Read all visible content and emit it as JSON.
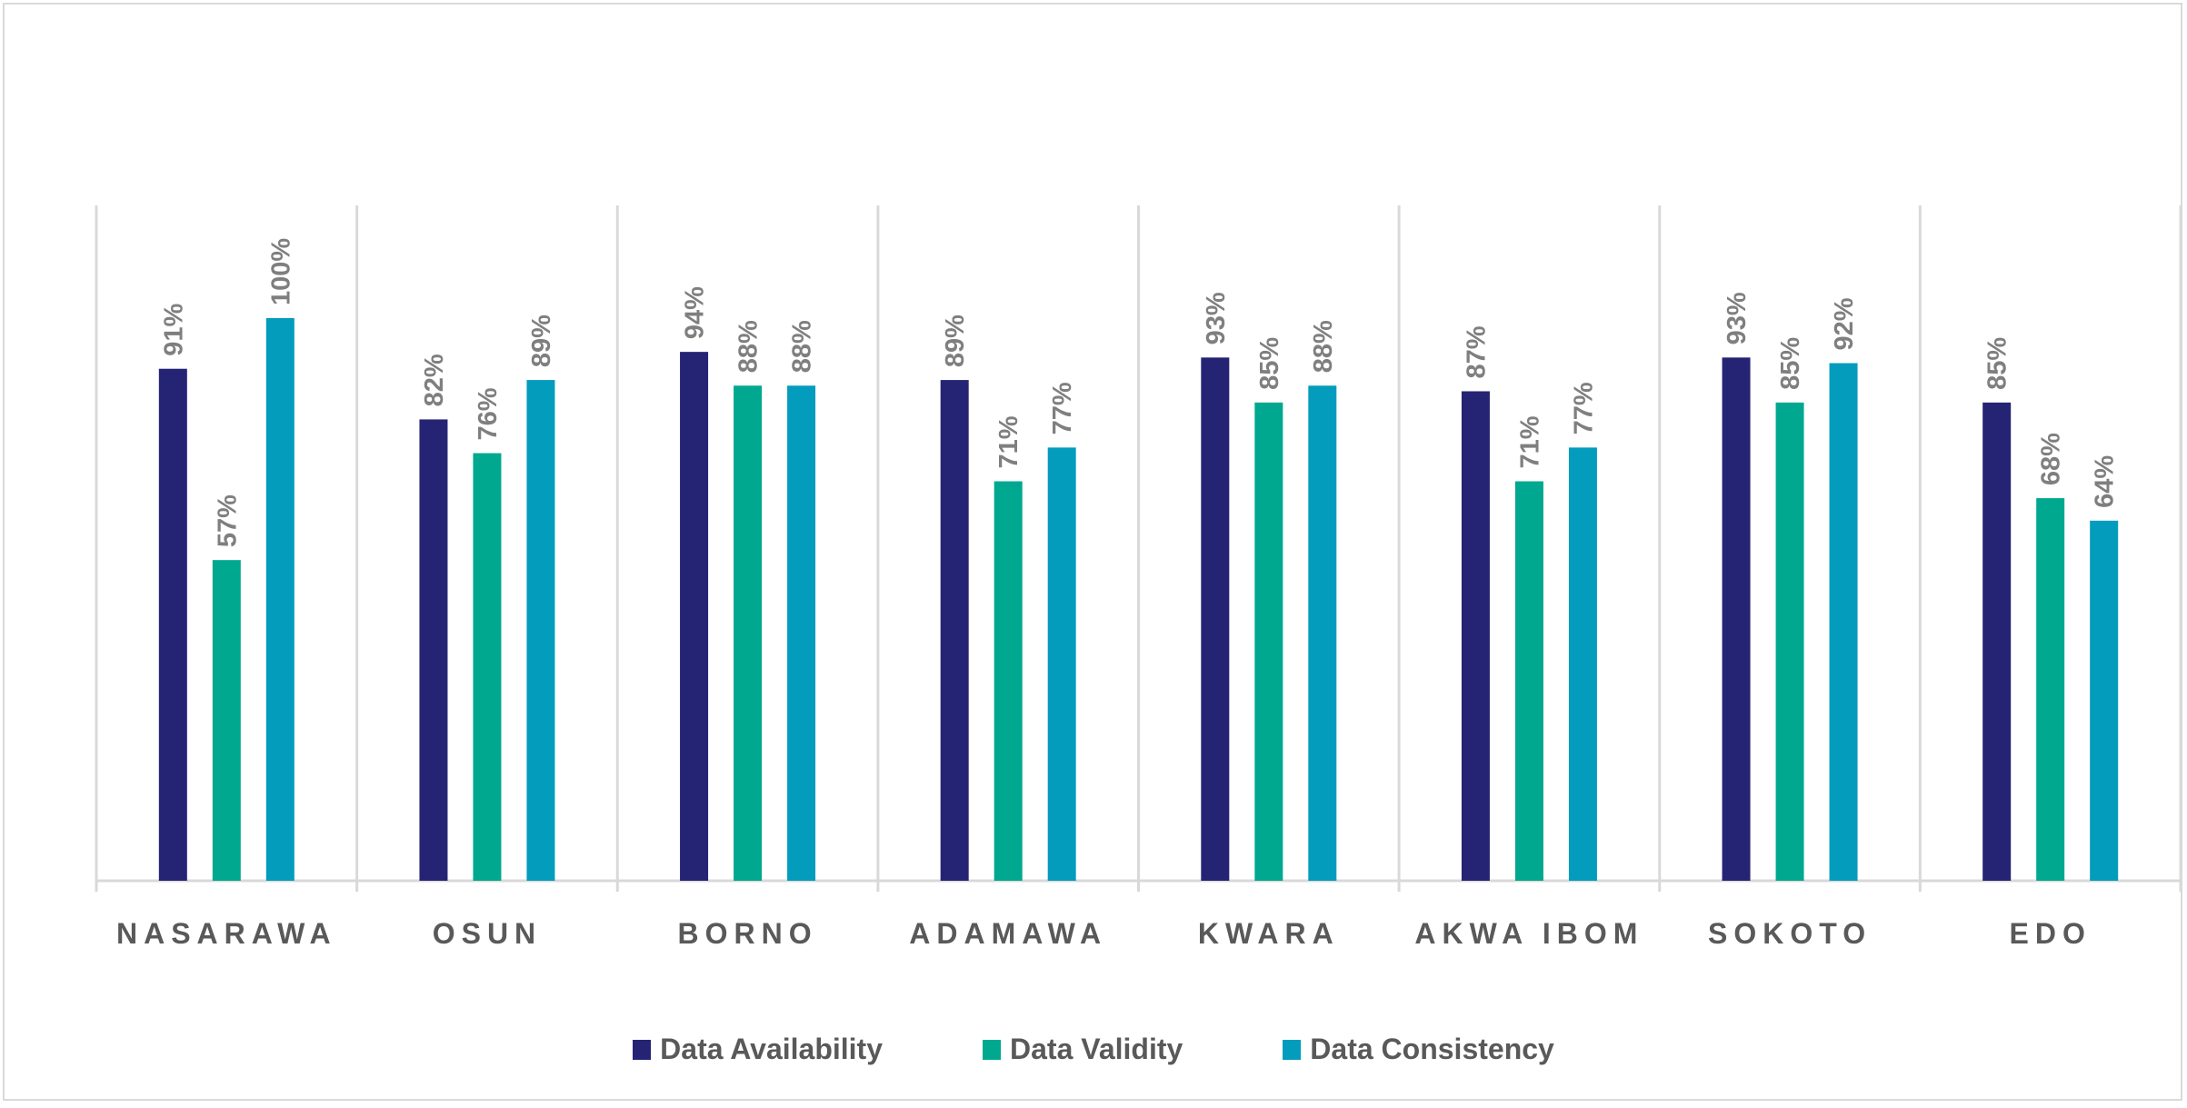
{
  "chart_data": {
    "type": "bar",
    "categories": [
      "NASARAWA",
      "OSUN",
      "BORNO",
      "ADAMAWA",
      "KWARA",
      "AKWA IBOM",
      "SOKOTO",
      "EDO"
    ],
    "series": [
      {
        "name": "Data Availability",
        "color": "#252474",
        "values": [
          91,
          82,
          94,
          89,
          93,
          87,
          93,
          85
        ]
      },
      {
        "name": "Data Validity",
        "color": "#00a88f",
        "values": [
          57,
          76,
          88,
          71,
          85,
          71,
          85,
          68
        ]
      },
      {
        "name": "Data Consistency",
        "color": "#039cbd",
        "values": [
          100,
          89,
          88,
          77,
          88,
          77,
          92,
          64
        ]
      }
    ],
    "value_format": "{v}%",
    "ylim": [
      0,
      100
    ],
    "grid": "vertical separators",
    "legend": "bottom",
    "title": "",
    "xlabel": "",
    "ylabel": ""
  }
}
